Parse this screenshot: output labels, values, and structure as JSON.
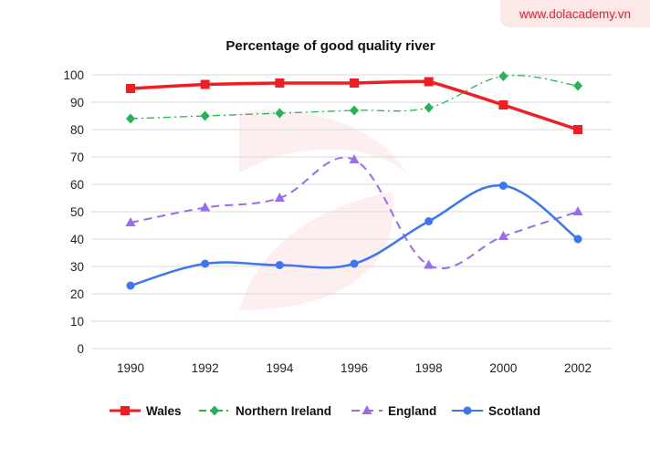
{
  "watermark": "www.dolacademy.vn",
  "chart_data": {
    "type": "line",
    "title": "Percentage of good quality river",
    "xlabel": "",
    "ylabel": "",
    "categories": [
      "1990",
      "1992",
      "1994",
      "1996",
      "1998",
      "2000",
      "2002"
    ],
    "ylim": [
      0,
      100
    ],
    "yticks": [
      0,
      10,
      20,
      30,
      40,
      50,
      60,
      70,
      80,
      90,
      100
    ],
    "grid": true,
    "legend_position": "bottom",
    "series": [
      {
        "name": "Wales",
        "values": [
          95,
          96.5,
          97,
          97,
          97.5,
          89,
          80
        ],
        "color": "#f01e23",
        "marker": "square",
        "line": "solid"
      },
      {
        "name": "Northern Ireland",
        "values": [
          84,
          85,
          86,
          87,
          88,
          99.5,
          96
        ],
        "color": "#22b550",
        "marker": "diamond",
        "line": "dashdot"
      },
      {
        "name": "England",
        "values": [
          46,
          51.5,
          55,
          69,
          30.5,
          41,
          50
        ],
        "color": "#9b6cf2",
        "marker": "triangle",
        "line": "dashed"
      },
      {
        "name": "Scotland",
        "values": [
          23,
          31,
          30.5,
          31,
          46.5,
          59.5,
          40
        ],
        "color": "#3b76f5",
        "marker": "circle",
        "line": "solid"
      }
    ]
  }
}
